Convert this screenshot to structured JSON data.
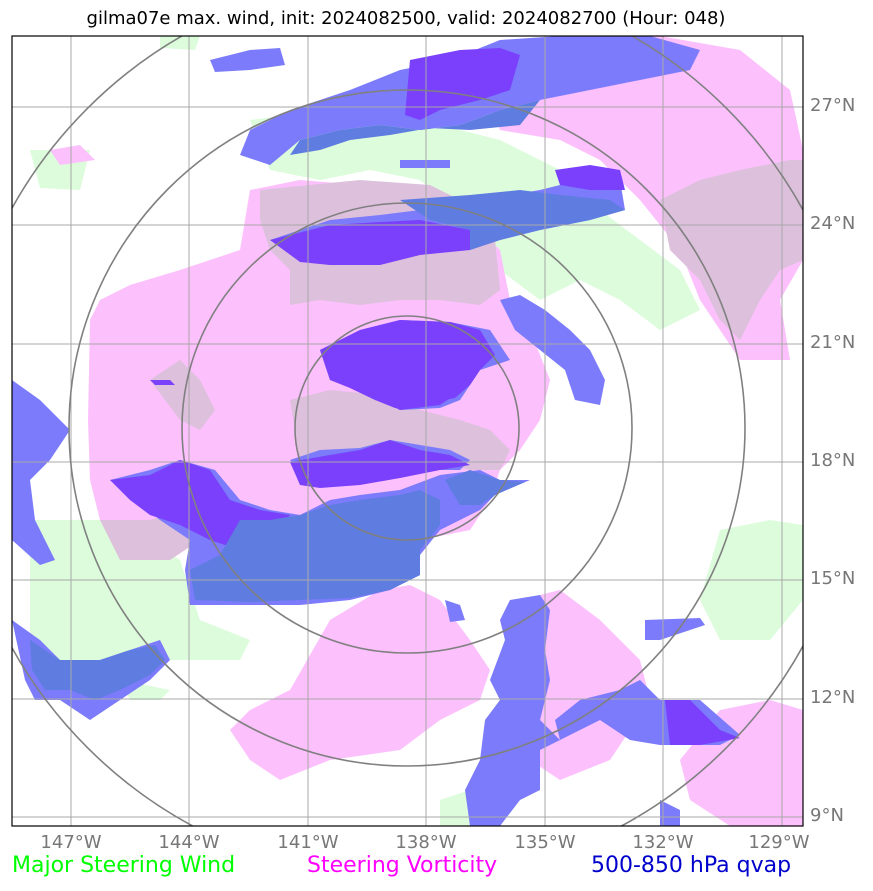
{
  "title": "gilma07e max. wind, init: 2024082500, valid: 2024082700 (Hour: 048)",
  "lat_labels": [
    "27°N",
    "24°N",
    "21°N",
    "18°N",
    "15°N",
    "12°N",
    "9°N"
  ],
  "lon_labels": [
    "147°W",
    "144°W",
    "141°W",
    "138°W",
    "135°W",
    "132°W",
    "129°W"
  ],
  "legend": {
    "wind": {
      "label": "Major Steering Wind",
      "color": "#00ff00"
    },
    "vorticity": {
      "label": "Steering Vorticity",
      "color": "#ff00ff"
    },
    "qvap": {
      "label": "500-850 hPa qvap",
      "color": "#0000cc"
    }
  },
  "colors": {
    "wind_fill": "#dcfcdc",
    "vort_fill": "#fcc0fc",
    "overlap_fill": "#dcc0dc",
    "qvap_fill": "#7b7bfb",
    "qvap_strong": "#7a40fb",
    "qvap_overlap": "#5f7ce0",
    "grid": "#a8a8a8",
    "range_rings": "#808080"
  }
}
